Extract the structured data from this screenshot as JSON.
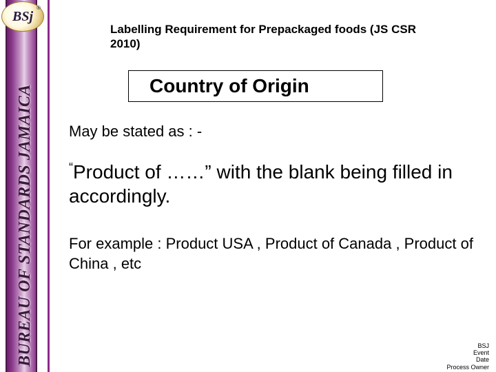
{
  "sidebar": {
    "org_text": "BUREAU OF STANDARDS JAMAICA",
    "logo_text": "BSj",
    "logo_trademark": "®",
    "gradient_colors": [
      "#6b206b",
      "#8b3a8b",
      "#c89bc8",
      "#e8d0e8"
    ],
    "border_color": "#8b2a8b"
  },
  "header": {
    "title": "Labelling Requirement for Prepackaged foods (JS CSR 2010)"
  },
  "section": {
    "badge_label": "Country of Origin",
    "badge_bg": "#ffffff",
    "badge_border": "#000000"
  },
  "body": {
    "intro": "May be stated as : -",
    "product_quote_open": "“",
    "product_line": "Product of ……”   with the blank being filled in accordingly.",
    "example": "For example : Product USA , Product of Canada , Product of China , etc"
  },
  "footer": {
    "l1": "BSJ",
    "l2": "Event",
    "l3": "Date",
    "l4": "Process Owner"
  },
  "colors": {
    "text": "#000000",
    "background": "#ffffff"
  },
  "typography": {
    "header_fontsize_pt": 13,
    "badge_fontsize_pt": 21,
    "body_fontsize_pt": 17,
    "product_fontsize_pt": 21,
    "footer_fontsize_pt": 7
  }
}
